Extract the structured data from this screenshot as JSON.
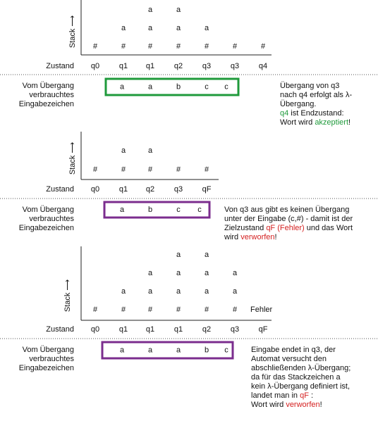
{
  "sections": [
    {
      "stack_label": "Stack ⟶",
      "stack_rows": [
        [
          null,
          null,
          "a",
          "a",
          null,
          null,
          null
        ],
        [
          null,
          "a",
          "a",
          "a",
          "a",
          null,
          null
        ],
        [
          "#",
          "#",
          "#",
          "#",
          "#",
          "#",
          "#"
        ]
      ],
      "state_label": "Zustand",
      "states": [
        "q0",
        "q1",
        "q1",
        "q2",
        "q3",
        "q3",
        "q4"
      ],
      "input_label": [
        "Vom Übergang",
        "verbrauchtes",
        "Eingabezeichen"
      ],
      "input": [
        "a",
        "a",
        "b",
        "c",
        "c"
      ],
      "box_color": "#1f9a3b",
      "note": [
        [
          "Übergang von q3"
        ],
        [
          "nach q4 erfolgt als λ-"
        ],
        [
          "Übergang."
        ],
        [
          {
            "text": "q4",
            "color": "#1f9a3b"
          },
          " ist Endzustand:"
        ],
        [
          "Wort wird ",
          {
            "text": "akzeptiert",
            "color": "#1f9a3b"
          },
          "!"
        ]
      ]
    },
    {
      "stack_label": "Stack ⟶",
      "stack_rows": [
        [
          null,
          "a",
          "a",
          null,
          null
        ],
        [
          "#",
          "#",
          "#",
          "#",
          "#"
        ]
      ],
      "state_label": "Zustand",
      "states": [
        "q0",
        "q1",
        "q2",
        "q3",
        {
          "text": "qF",
          "color": "#d42020"
        }
      ],
      "input_label": [
        "Vom Übergang",
        "verbrauchtes",
        "Eingabezeichen"
      ],
      "input": [
        "a",
        "b",
        "c",
        "c"
      ],
      "box_color": "#7b2d8e",
      "note": [
        [
          "Von q3 aus gibt es keinen Übergang"
        ],
        [
          "unter der Eingabe (c,#) - damit ist der"
        ],
        [
          "Zielzustand ",
          {
            "text": "qF (Fehler)",
            "color": "#d42020"
          },
          " und das Wort"
        ],
        [
          "wird ",
          {
            "text": "verworfen",
            "color": "#d42020"
          },
          "!"
        ]
      ]
    },
    {
      "stack_label": "Stack ⟶",
      "stack_rows": [
        [
          null,
          null,
          null,
          "a",
          "a",
          null
        ],
        [
          null,
          null,
          "a",
          "a",
          "a",
          "a"
        ],
        [
          null,
          "a",
          "a",
          "a",
          "a",
          "a"
        ],
        [
          "#",
          "#",
          "#",
          "#",
          "#",
          "#"
        ]
      ],
      "stack_note": "Fehler",
      "state_label": "Zustand",
      "states": [
        "q0",
        "q1",
        "q1",
        "q1",
        "q2",
        "q3",
        {
          "text": "qF",
          "color": "#d42020"
        }
      ],
      "input_label": [
        "Vom Übergang",
        "verbrauchtes",
        "Eingabezeichen"
      ],
      "input": [
        "a",
        "a",
        "a",
        "b",
        "c"
      ],
      "box_color": "#7b2d8e",
      "note": [
        [
          "Eingabe endet in q3, der"
        ],
        [
          "Automat versucht den"
        ],
        [
          "abschließenden λ-Übergang;"
        ],
        [
          "da für das Stackzeichen a"
        ],
        [
          "kein λ-Übergang definiert ist,"
        ],
        [
          "landet man in ",
          {
            "text": "qF",
            "color": "#d42020"
          },
          " :"
        ],
        [
          "Wort wird ",
          {
            "text": "verworfen",
            "color": "#d42020"
          },
          "!"
        ]
      ]
    }
  ]
}
